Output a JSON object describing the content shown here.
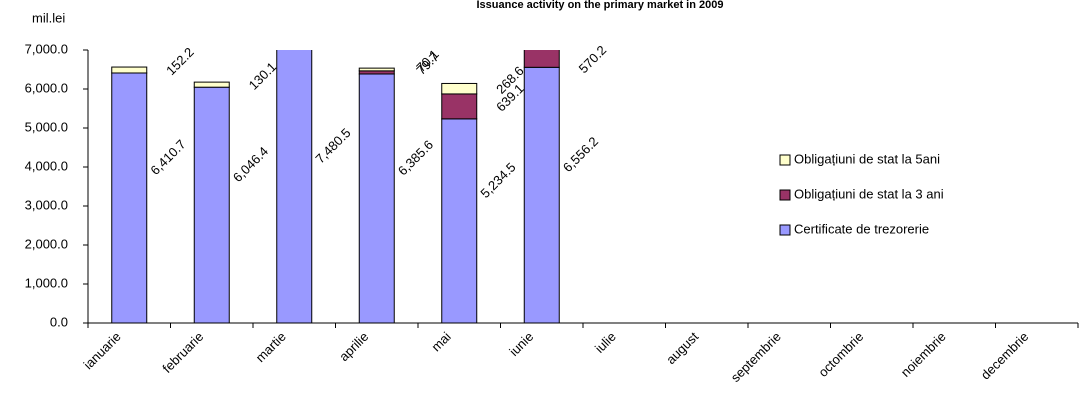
{
  "chart_data": {
    "type": "stacked_bar",
    "title": "Issuance activity on the primary market in 2009",
    "y_label": "mil.lei",
    "categories": [
      "ianuarie",
      "februarie",
      "martie",
      "aprilie",
      "mai",
      "iunie",
      "iulie",
      "august",
      "septembrie",
      "octombrie",
      "noiembrie",
      "decembrie"
    ],
    "series": [
      {
        "name": "Certificate de trezorerie",
        "color": "#9999ff",
        "values": [
          6410.7,
          6046.4,
          7480.5,
          6385.6,
          5234.5,
          6556.2,
          null,
          null,
          null,
          null,
          null,
          null
        ],
        "value_labels": [
          "6,410.7",
          "6,046.4",
          "7,480.5",
          "6,385.6",
          "5,234.5",
          "6,556.2",
          null,
          null,
          null,
          null,
          null,
          null
        ]
      },
      {
        "name": "Obligațiuni de stat la 3 ani",
        "color": "#993366",
        "values": [
          null,
          null,
          null,
          79.7,
          639.1,
          570.2,
          null,
          null,
          null,
          null,
          null,
          null
        ],
        "value_labels": [
          null,
          null,
          null,
          "79.7",
          "639.1",
          "570.2",
          null,
          null,
          null,
          null,
          null,
          null
        ]
      },
      {
        "name": "Obligațiuni de stat la 5ani",
        "color": "#ffffcc",
        "values": [
          152.2,
          130.1,
          null,
          70.1,
          268.6,
          null,
          null,
          null,
          null,
          null,
          null,
          null
        ],
        "value_labels": [
          "152.2",
          "130.1",
          null,
          "70.1",
          "268.6",
          null,
          null,
          null,
          null,
          null,
          null,
          null
        ]
      }
    ],
    "ylim": [
      0,
      7000
    ],
    "yticks": [
      {
        "value": 0,
        "label": "0.0"
      },
      {
        "value": 1000,
        "label": "1,000.0"
      },
      {
        "value": 2000,
        "label": "2,000.0"
      },
      {
        "value": 3000,
        "label": "3,000.0"
      },
      {
        "value": 4000,
        "label": "4,000.0"
      },
      {
        "value": 5000,
        "label": "5,000.0"
      },
      {
        "value": 6000,
        "label": "6,000.0"
      },
      {
        "value": 7000,
        "label": "7,000.0"
      }
    ],
    "legend": "right"
  }
}
